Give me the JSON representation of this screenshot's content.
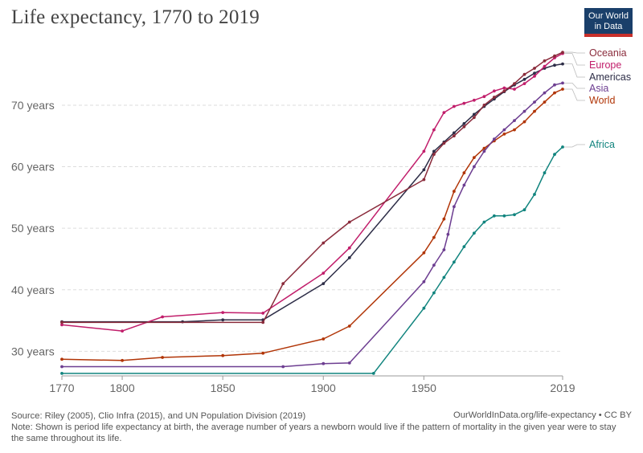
{
  "title": "Life expectancy, 1770 to 2019",
  "logo": {
    "line1": "Our World",
    "line2": "in Data"
  },
  "footer": {
    "source": "Source: Riley (2005), Clio Infra (2015), and UN Population Division (2019)",
    "url_license": "OurWorldInData.org/life-expectancy • CC BY",
    "note": "Note: Shown is period life expectancy at birth, the average number of years a newborn would live if the pattern of mortality in the given year were to stay the same throughout its life."
  },
  "chart_data": {
    "type": "line",
    "title": "Life expectancy, 1770 to 2019",
    "xlabel": "",
    "ylabel": "",
    "xlim": [
      1770,
      2019
    ],
    "ylim": [
      26,
      79
    ],
    "x_ticks": [
      1770,
      1800,
      1850,
      1900,
      1950,
      2019
    ],
    "y_ticks": [
      {
        "value": 30,
        "label": "30 years"
      },
      {
        "value": 40,
        "label": "40 years"
      },
      {
        "value": 50,
        "label": "50 years"
      },
      {
        "value": 60,
        "label": "60 years"
      },
      {
        "value": 70,
        "label": "70 years"
      }
    ],
    "grid": "horizontal dashed",
    "legend": "line-end labels on the right",
    "series": [
      {
        "name": "Africa",
        "color": "#11847e",
        "points": [
          [
            1770,
            26.4
          ],
          [
            1925,
            26.4
          ],
          [
            1950,
            37
          ],
          [
            1955,
            39.5
          ],
          [
            1960,
            42
          ],
          [
            1965,
            44.5
          ],
          [
            1970,
            47
          ],
          [
            1975,
            49.2
          ],
          [
            1980,
            51
          ],
          [
            1985,
            52
          ],
          [
            1990,
            52
          ],
          [
            1995,
            52.2
          ],
          [
            2000,
            53
          ],
          [
            2005,
            55.5
          ],
          [
            2010,
            59
          ],
          [
            2015,
            62
          ],
          [
            2019,
            63.2
          ]
        ]
      },
      {
        "name": "World",
        "color": "#b13507",
        "points": [
          [
            1770,
            28.7
          ],
          [
            1800,
            28.5
          ],
          [
            1820,
            29
          ],
          [
            1850,
            29.3
          ],
          [
            1870,
            29.7
          ],
          [
            1900,
            32
          ],
          [
            1913,
            34.1
          ],
          [
            1950,
            46
          ],
          [
            1955,
            48.5
          ],
          [
            1960,
            51.5
          ],
          [
            1965,
            56
          ],
          [
            1970,
            59
          ],
          [
            1975,
            61.5
          ],
          [
            1980,
            63
          ],
          [
            1985,
            64.2
          ],
          [
            1990,
            65.3
          ],
          [
            1995,
            66
          ],
          [
            2000,
            67.3
          ],
          [
            2005,
            69
          ],
          [
            2010,
            70.5
          ],
          [
            2015,
            72
          ],
          [
            2019,
            72.6
          ]
        ]
      },
      {
        "name": "Asia",
        "color": "#6d3e91",
        "points": [
          [
            1770,
            27.5
          ],
          [
            1880,
            27.5
          ],
          [
            1900,
            28
          ],
          [
            1913,
            28.1
          ],
          [
            1950,
            41.3
          ],
          [
            1955,
            44
          ],
          [
            1960,
            46.5
          ],
          [
            1962,
            49
          ],
          [
            1965,
            53.5
          ],
          [
            1970,
            57
          ],
          [
            1975,
            60
          ],
          [
            1980,
            62.5
          ],
          [
            1985,
            64.5
          ],
          [
            1990,
            66
          ],
          [
            1995,
            67.5
          ],
          [
            2000,
            69
          ],
          [
            2005,
            70.5
          ],
          [
            2010,
            72
          ],
          [
            2015,
            73.3
          ],
          [
            2019,
            73.6
          ]
        ]
      },
      {
        "name": "Americas",
        "color": "#2d2d47",
        "points": [
          [
            1770,
            34.8
          ],
          [
            1830,
            34.8
          ],
          [
            1850,
            35.1
          ],
          [
            1870,
            35.1
          ],
          [
            1900,
            41
          ],
          [
            1913,
            45.2
          ],
          [
            1950,
            59.5
          ],
          [
            1955,
            62.5
          ],
          [
            1960,
            64
          ],
          [
            1965,
            65.5
          ],
          [
            1970,
            67
          ],
          [
            1975,
            68.5
          ],
          [
            1980,
            69.8
          ],
          [
            1985,
            71
          ],
          [
            1990,
            72.2
          ],
          [
            1995,
            73.3
          ],
          [
            2000,
            74.2
          ],
          [
            2005,
            75.2
          ],
          [
            2010,
            76
          ],
          [
            2015,
            76.5
          ],
          [
            2019,
            76.7
          ]
        ]
      },
      {
        "name": "Europe",
        "color": "#c11e6b",
        "points": [
          [
            1770,
            34.3
          ],
          [
            1800,
            33.3
          ],
          [
            1820,
            35.6
          ],
          [
            1850,
            36.3
          ],
          [
            1870,
            36.2
          ],
          [
            1900,
            42.7
          ],
          [
            1913,
            46.8
          ],
          [
            1950,
            62.5
          ],
          [
            1955,
            66
          ],
          [
            1960,
            68.8
          ],
          [
            1965,
            69.8
          ],
          [
            1970,
            70.3
          ],
          [
            1975,
            70.8
          ],
          [
            1980,
            71.4
          ],
          [
            1985,
            72.3
          ],
          [
            1990,
            72.8
          ],
          [
            1995,
            72.6
          ],
          [
            2000,
            73.5
          ],
          [
            2005,
            74.7
          ],
          [
            2010,
            76.3
          ],
          [
            2015,
            77.7
          ],
          [
            2019,
            78.4
          ]
        ]
      },
      {
        "name": "Oceania",
        "color": "#8a2b3b",
        "points": [
          [
            1770,
            34.7
          ],
          [
            1870,
            34.7
          ],
          [
            1880,
            41
          ],
          [
            1900,
            47.6
          ],
          [
            1913,
            51
          ],
          [
            1950,
            57.9
          ],
          [
            1955,
            62
          ],
          [
            1960,
            63.8
          ],
          [
            1965,
            65
          ],
          [
            1970,
            66.5
          ],
          [
            1975,
            68
          ],
          [
            1980,
            70
          ],
          [
            1985,
            71.3
          ],
          [
            1990,
            72.3
          ],
          [
            1995,
            73.5
          ],
          [
            2000,
            75
          ],
          [
            2005,
            76
          ],
          [
            2010,
            77.2
          ],
          [
            2015,
            78
          ],
          [
            2019,
            78.6
          ]
        ]
      }
    ]
  }
}
